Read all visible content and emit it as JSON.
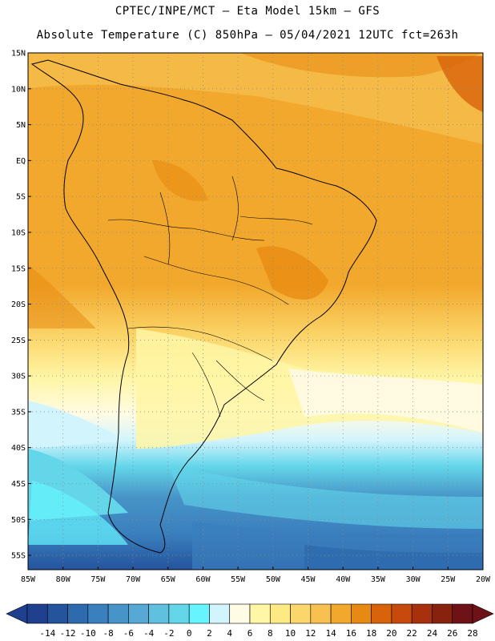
{
  "header": {
    "line1": "CPTEC/INPE/MCT –  Eta Model 15km – GFS",
    "line2": "Absolute Temperature (C) 850hPa – 05/04/2021 12UTC fct=263h"
  },
  "map": {
    "lat_labels": [
      "15N",
      "10N",
      "5N",
      "EQ",
      "5S",
      "10S",
      "15S",
      "20S",
      "25S",
      "30S",
      "35S",
      "40S",
      "45S",
      "50S",
      "55S"
    ],
    "lon_labels": [
      "85W",
      "80W",
      "75W",
      "70W",
      "65W",
      "60W",
      "55W",
      "50W",
      "45W",
      "40W",
      "35W",
      "30W",
      "25W",
      "20W"
    ],
    "lat_range": [
      15,
      -57
    ],
    "lon_range": [
      -85,
      -20
    ],
    "grid": true
  },
  "legend": {
    "ticks": [
      "-14",
      "-12",
      "-10",
      "-8",
      "-6",
      "-4",
      "-2",
      "0",
      "2",
      "4",
      "6",
      "8",
      "10",
      "12",
      "14",
      "16",
      "18",
      "20",
      "22",
      "24",
      "26",
      "28"
    ],
    "colors": [
      "#1f3f8f",
      "#24549c",
      "#2d6aae",
      "#3a7fbe",
      "#4794c8",
      "#55a9d4",
      "#5fc0e0",
      "#63d6ea",
      "#66f5ff",
      "#d2f4fc",
      "#fffbe5",
      "#fff6a6",
      "#fdea84",
      "#fbd66a",
      "#f7c050",
      "#f2a82c",
      "#e88a12",
      "#d8630a",
      "#c64a0b",
      "#a8300c",
      "#87220f",
      "#6f1217"
    ],
    "under_color": "#1f3f8f",
    "over_color": "#6f1217"
  }
}
